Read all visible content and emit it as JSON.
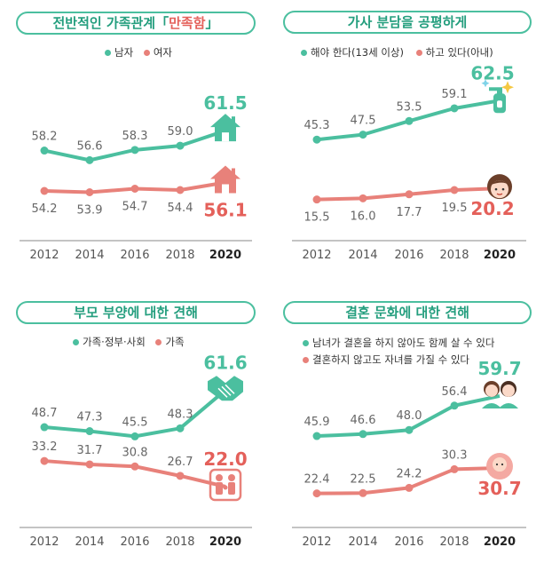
{
  "colors": {
    "green": "#4bbf9f",
    "green_dark": "#249e7e",
    "red": "#e8817a",
    "red_dark": "#e4605a",
    "axis": "#555555",
    "value_text": "#666666"
  },
  "chart_data": [
    {
      "type": "line",
      "title": "전반적인 가족관계「만족함」",
      "title_parts": [
        "전반적인 가족관계「",
        "만족함",
        "」"
      ],
      "categories": [
        "2012",
        "2014",
        "2016",
        "2018",
        "2020"
      ],
      "series": [
        {
          "name": "남자",
          "values": [
            58.2,
            56.6,
            58.3,
            59.0,
            61.5
          ],
          "labels": [
            "58.2",
            "56.6",
            "58.3",
            "59.0",
            "61.5"
          ],
          "color": "#4bbf9f",
          "icon": "house-icon"
        },
        {
          "name": "여자",
          "values": [
            54.2,
            53.9,
            54.7,
            54.4,
            56.1
          ],
          "labels": [
            "54.2",
            "53.9",
            "54.7",
            "54.4",
            "56.1"
          ],
          "color": "#e8817a",
          "icon": "house-icon"
        }
      ],
      "legend": "top-center-inline"
    },
    {
      "type": "line",
      "title": "가사 분담을 공평하게",
      "categories": [
        "2012",
        "2014",
        "2016",
        "2018",
        "2020"
      ],
      "series": [
        {
          "name": "해야 한다(13세 이상)",
          "values": [
            45.3,
            47.5,
            53.5,
            59.1,
            62.5
          ],
          "labels": [
            "45.3",
            "47.5",
            "53.5",
            "59.1",
            "62.5"
          ],
          "color": "#4bbf9f",
          "icon": "spray-bottle-icon"
        },
        {
          "name": "하고 있다(아내)",
          "values": [
            15.5,
            16.0,
            17.7,
            19.5,
            20.2
          ],
          "labels": [
            "15.5",
            "16.0",
            "17.7",
            "19.5",
            "20.2"
          ],
          "color": "#e8817a",
          "icon": "woman-face-icon"
        }
      ],
      "legend": "top-center-inline"
    },
    {
      "type": "line",
      "title": "부모 부양에 대한 견해",
      "categories": [
        "2012",
        "2014",
        "2016",
        "2018",
        "2020"
      ],
      "series": [
        {
          "name": "가족·정부·사회",
          "values": [
            48.7,
            47.3,
            45.5,
            48.3,
            61.6
          ],
          "labels": [
            "48.7",
            "47.3",
            "45.5",
            "48.3",
            "61.6"
          ],
          "color": "#4bbf9f",
          "icon": "handshake-icon"
        },
        {
          "name": "가족",
          "values": [
            33.2,
            31.7,
            30.8,
            26.7,
            22.0
          ],
          "labels": [
            "33.2",
            "31.7",
            "30.8",
            "26.7",
            "22.0"
          ],
          "color": "#e8817a",
          "icon": "family-icon"
        }
      ],
      "legend": "top-left-inline"
    },
    {
      "type": "line",
      "title": "결혼 문화에 대한 견해",
      "categories": [
        "2012",
        "2014",
        "2016",
        "2018",
        "2020"
      ],
      "series": [
        {
          "name": "남녀가 결혼을 하지 않아도 함께 살 수 있다",
          "values": [
            45.9,
            46.6,
            48.0,
            56.4,
            59.7
          ],
          "labels": [
            "45.9",
            "46.6",
            "48.0",
            "56.4",
            "59.7"
          ],
          "color": "#4bbf9f",
          "icon": "couple-icon"
        },
        {
          "name": "결혼하지 않고도 자녀를 가질 수 있다",
          "values": [
            22.4,
            22.5,
            24.2,
            30.3,
            30.7
          ],
          "labels": [
            "22.4",
            "22.5",
            "24.2",
            "30.3",
            "30.7"
          ],
          "color": "#e8817a",
          "icon": "baby-icon"
        }
      ],
      "legend": "top-left-stacked"
    }
  ]
}
